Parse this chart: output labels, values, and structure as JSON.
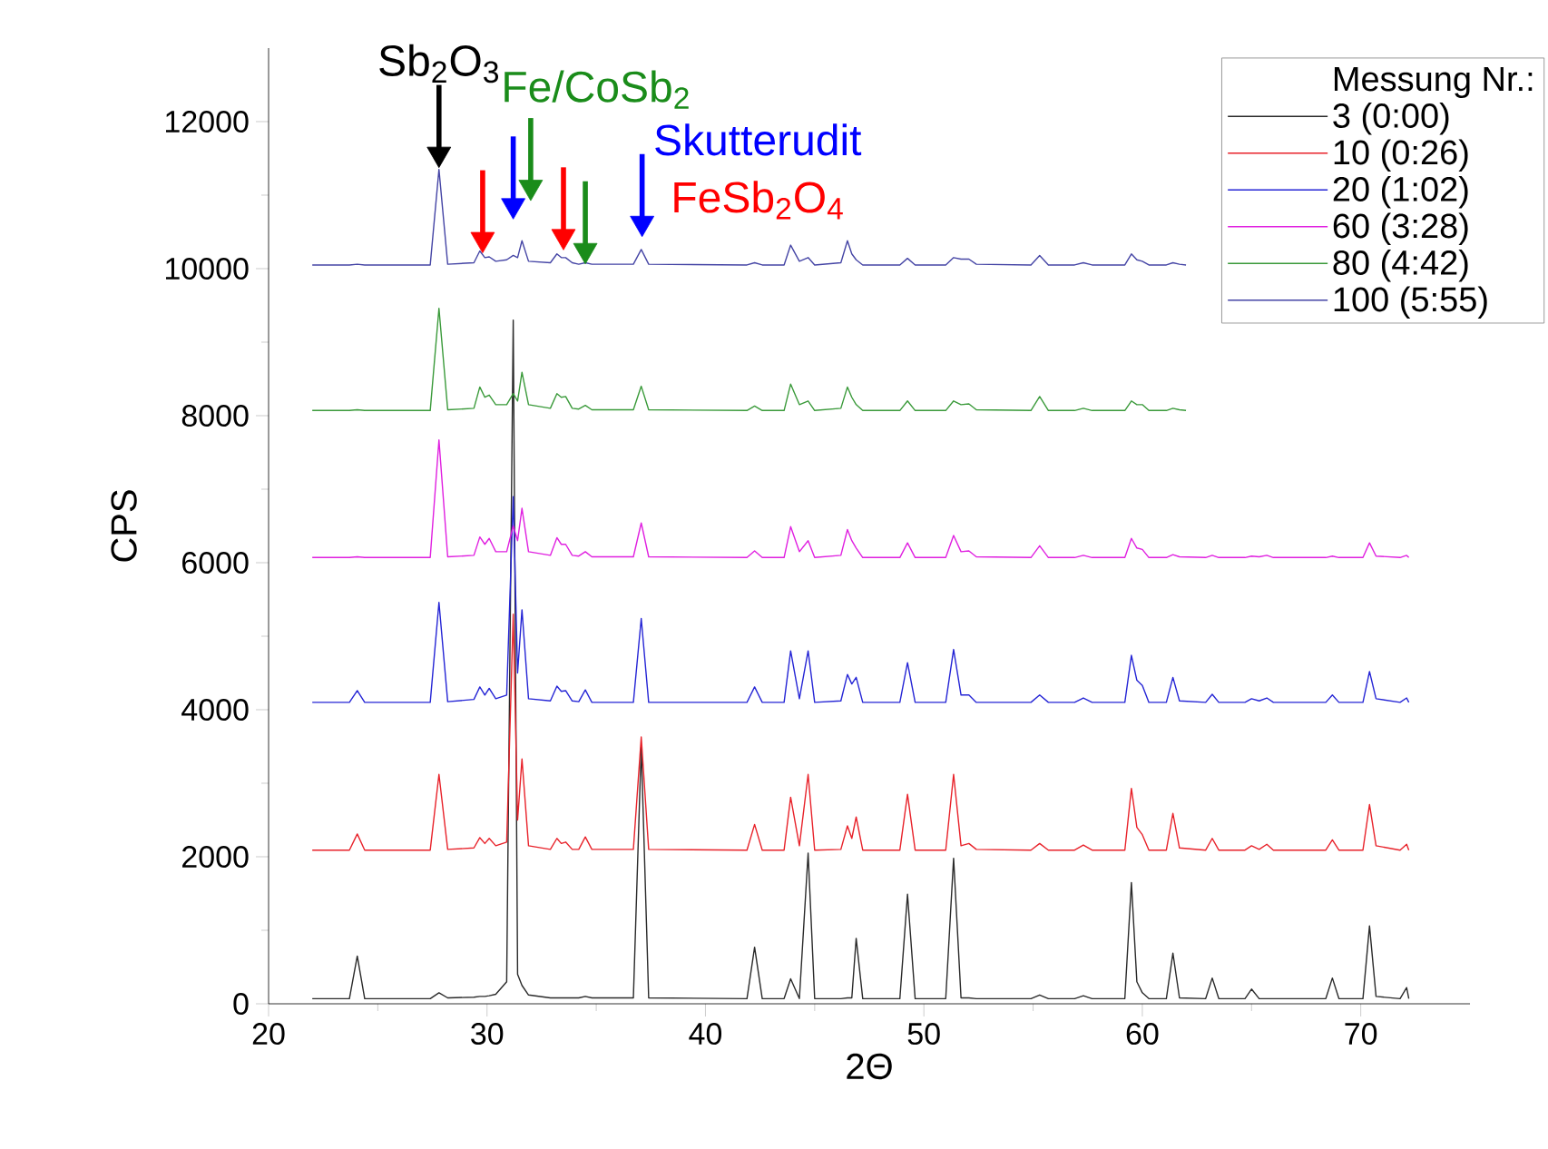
{
  "chart_data": {
    "type": "line",
    "xlabel": "2Θ",
    "ylabel": "CPS",
    "legend_title": "Messung Nr.:",
    "legend": "top right",
    "xlim": [
      20,
      75
    ],
    "xticks": [
      20,
      30,
      40,
      50,
      60,
      70
    ],
    "ylim": [
      0,
      13000
    ],
    "yticks": [
      0,
      2000,
      4000,
      6000,
      8000,
      10000,
      12000
    ],
    "x": [
      22,
      23.7,
      24.06,
      24.4,
      27.4,
      27.8,
      28.2,
      29.4,
      29.67,
      29.9,
      30.1,
      30.4,
      30.9,
      31.2,
      31.4,
      31.6,
      31.9,
      32.9,
      33.2,
      33.4,
      33.6,
      33.9,
      34.2,
      34.5,
      34.8,
      36.7,
      37.06,
      37.4,
      41.9,
      42.25,
      42.6,
      43.6,
      43.9,
      44.3,
      44.7,
      45.0,
      46.2,
      46.5,
      46.7,
      46.9,
      47.2,
      48.9,
      49.25,
      49.6,
      51.0,
      51.36,
      51.7,
      52.06,
      52.4,
      54.9,
      55.3,
      55.7,
      56.9,
      57.3,
      57.7,
      59.2,
      59.5,
      59.75,
      60.0,
      60.3,
      61.1,
      61.4,
      61.7,
      62.9,
      63.2,
      63.5,
      64.7,
      65.0,
      65.35,
      65.7,
      66.0,
      68.4,
      68.7,
      69.0,
      70.1,
      70.4,
      70.7,
      71.8,
      72.1,
      72.2
    ],
    "series": [
      {
        "name": "3 (0:00)",
        "color": "#2a2a2a",
        "values": [
          70,
          70,
          650,
          70,
          70,
          150,
          80,
          90,
          100,
          100,
          110,
          130,
          300,
          9300,
          400,
          250,
          120,
          80,
          80,
          80,
          80,
          80,
          80,
          100,
          80,
          80,
          3500,
          80,
          70,
          770,
          70,
          70,
          340,
          70,
          2050,
          70,
          70,
          80,
          80,
          890,
          70,
          70,
          1490,
          70,
          70,
          1980,
          80,
          80,
          70,
          70,
          120,
          70,
          70,
          110,
          70,
          70,
          1650,
          300,
          150,
          70,
          70,
          690,
          80,
          70,
          350,
          70,
          70,
          200,
          70,
          70,
          70,
          70,
          350,
          70,
          70,
          1060,
          100,
          70,
          220,
          70
        ]
      },
      {
        "name": "10 (0:26)",
        "color": "#e8222a",
        "values": [
          2090,
          2090,
          2310,
          2090,
          2090,
          3120,
          2100,
          2120,
          2260,
          2180,
          2250,
          2150,
          2200,
          5300,
          2500,
          3330,
          2150,
          2100,
          2250,
          2180,
          2200,
          2100,
          2100,
          2270,
          2100,
          2100,
          3630,
          2100,
          2090,
          2440,
          2090,
          2090,
          2810,
          2150,
          3120,
          2090,
          2100,
          2420,
          2250,
          2540,
          2090,
          2090,
          2850,
          2090,
          2090,
          3120,
          2150,
          2180,
          2100,
          2090,
          2180,
          2090,
          2090,
          2160,
          2090,
          2090,
          2930,
          2400,
          2300,
          2090,
          2090,
          2590,
          2120,
          2090,
          2250,
          2090,
          2090,
          2150,
          2100,
          2170,
          2090,
          2090,
          2230,
          2090,
          2090,
          2710,
          2150,
          2090,
          2170,
          2090
        ]
      },
      {
        "name": "20 (1:02)",
        "color": "#2525d5",
        "values": [
          4100,
          4100,
          4260,
          4100,
          4100,
          5460,
          4110,
          4140,
          4310,
          4200,
          4290,
          4150,
          4200,
          6900,
          4500,
          5360,
          4150,
          4120,
          4320,
          4250,
          4260,
          4120,
          4110,
          4270,
          4100,
          4100,
          5240,
          4100,
          4100,
          4310,
          4100,
          4100,
          4800,
          4150,
          4800,
          4100,
          4120,
          4480,
          4350,
          4440,
          4100,
          4100,
          4640,
          4100,
          4100,
          4820,
          4200,
          4200,
          4100,
          4100,
          4200,
          4100,
          4100,
          4160,
          4100,
          4100,
          4740,
          4400,
          4330,
          4100,
          4100,
          4440,
          4120,
          4100,
          4210,
          4100,
          4100,
          4150,
          4120,
          4160,
          4100,
          4100,
          4200,
          4100,
          4100,
          4520,
          4150,
          4100,
          4160,
          4100
        ]
      },
      {
        "name": "60 (3:28)",
        "color": "#e020e0",
        "values": [
          6070,
          6070,
          6080,
          6070,
          6070,
          7670,
          6080,
          6100,
          6350,
          6250,
          6330,
          6150,
          6150,
          6500,
          6300,
          6740,
          6150,
          6100,
          6340,
          6250,
          6250,
          6100,
          6090,
          6150,
          6080,
          6080,
          6540,
          6080,
          6070,
          6160,
          6070,
          6070,
          6490,
          6150,
          6300,
          6070,
          6100,
          6450,
          6300,
          6200,
          6070,
          6070,
          6270,
          6070,
          6070,
          6370,
          6150,
          6160,
          6080,
          6070,
          6230,
          6070,
          6070,
          6100,
          6070,
          6070,
          6330,
          6200,
          6180,
          6070,
          6070,
          6110,
          6080,
          6070,
          6100,
          6070,
          6070,
          6090,
          6080,
          6100,
          6070,
          6070,
          6090,
          6070,
          6070,
          6270,
          6090,
          6070,
          6100,
          6070
        ]
      },
      {
        "name": "80 (4:42)",
        "color": "#3a9a3a",
        "x": [
          22,
          23.7,
          24.06,
          24.4,
          27.4,
          27.8,
          28.2,
          29.4,
          29.67,
          29.9,
          30.1,
          30.4,
          30.9,
          31.2,
          31.4,
          31.6,
          31.9,
          32.9,
          33.2,
          33.4,
          33.6,
          33.9,
          34.2,
          34.5,
          34.8,
          36.7,
          37.06,
          37.4,
          41.9,
          42.25,
          42.6,
          43.6,
          43.9,
          44.3,
          44.7,
          45.0,
          46.2,
          46.5,
          46.7,
          46.9,
          47.2,
          48.9,
          49.25,
          49.6,
          51.0,
          51.36,
          51.7,
          52.06,
          52.4,
          54.9,
          55.3,
          55.7,
          56.9,
          57.3,
          57.7,
          59.2,
          59.5,
          59.75,
          60.0,
          60.3,
          61.1,
          61.4,
          61.7,
          62.0
        ],
        "values": [
          8070,
          8070,
          8080,
          8070,
          8070,
          9460,
          8080,
          8100,
          8390,
          8250,
          8280,
          8150,
          8150,
          8300,
          8200,
          8590,
          8150,
          8100,
          8300,
          8250,
          8260,
          8100,
          8090,
          8140,
          8080,
          8080,
          8400,
          8080,
          8070,
          8130,
          8070,
          8070,
          8430,
          8150,
          8200,
          8070,
          8100,
          8390,
          8250,
          8150,
          8070,
          8070,
          8200,
          8070,
          8070,
          8200,
          8150,
          8160,
          8080,
          8070,
          8260,
          8070,
          8070,
          8100,
          8070,
          8070,
          8200,
          8150,
          8150,
          8070,
          8070,
          8100,
          8080,
          8070
        ]
      },
      {
        "name": "100 (5:55)",
        "color": "#4545a5",
        "x": [
          22,
          23.7,
          24.06,
          24.4,
          27.4,
          27.8,
          28.2,
          29.4,
          29.67,
          29.9,
          30.1,
          30.4,
          30.9,
          31.2,
          31.4,
          31.6,
          31.9,
          32.9,
          33.2,
          33.4,
          33.6,
          33.9,
          34.2,
          34.5,
          34.8,
          36.7,
          37.06,
          37.4,
          41.9,
          42.25,
          42.6,
          43.6,
          43.9,
          44.3,
          44.7,
          45.0,
          46.2,
          46.5,
          46.7,
          46.9,
          47.2,
          48.9,
          49.25,
          49.6,
          51.0,
          51.36,
          51.7,
          52.06,
          52.4,
          54.9,
          55.3,
          55.7,
          56.9,
          57.3,
          57.7,
          59.2,
          59.5,
          59.75,
          60.0,
          60.3,
          61.1,
          61.4,
          61.7,
          62.0
        ],
        "values": [
          10050,
          10050,
          10060,
          10050,
          10050,
          11350,
          10060,
          10080,
          10240,
          10150,
          10160,
          10100,
          10120,
          10180,
          10150,
          10380,
          10100,
          10080,
          10200,
          10150,
          10150,
          10080,
          10060,
          10080,
          10060,
          10060,
          10260,
          10060,
          10050,
          10080,
          10050,
          10050,
          10320,
          10100,
          10150,
          10050,
          10080,
          10380,
          10200,
          10120,
          10050,
          10050,
          10140,
          10050,
          10050,
          10150,
          10130,
          10130,
          10060,
          10050,
          10180,
          10050,
          10050,
          10080,
          10050,
          10050,
          10200,
          10120,
          10100,
          10050,
          10050,
          10080,
          10060,
          10050
        ]
      },
      {
        "type": "scatter",
        "marker": "triangle",
        "color": "#000000",
        "x": [
          27.8
        ],
        "values": [
          11560
        ]
      },
      {
        "type": "scatter",
        "marker": "triangle",
        "color": "#1a8c1a",
        "x": [
          32.0,
          34.5
        ],
        "values": [
          11110,
          10250
        ]
      },
      {
        "type": "scatter",
        "marker": "triangle",
        "color": "#0000ff",
        "x": [
          31.2,
          37.1
        ],
        "values": [
          10860,
          10620
        ]
      },
      {
        "type": "scatter",
        "marker": "triangle",
        "color": "#ff0000",
        "x": [
          29.8,
          33.5
        ],
        "values": [
          10400,
          10440
        ]
      }
    ],
    "annotations": [
      {
        "text": "Sb$_{2}$O$_{3}$",
        "x": 27.8,
        "y": 11560
      },
      {
        "text": "Fe/CoSb$_{2}$",
        "x": 32.0,
        "y": 11110
      },
      {
        "text": "Skutterudit",
        "x": 37.1,
        "y": 10620
      },
      {
        "text": "FeSb$_{2}$O$_{4}$",
        "x": 33.5,
        "y": 10440
      }
    ]
  }
}
